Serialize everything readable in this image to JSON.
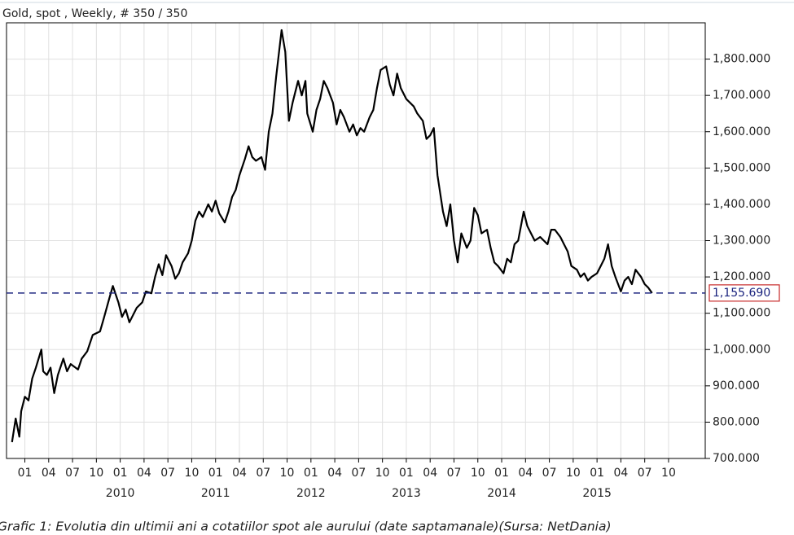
{
  "chart_data": {
    "type": "line",
    "title": "Gold, spot , Weekly, # 350 / 350",
    "caption": "Grafic 1: Evolutia din ultimii ani a cotatiilor spot ale aurului (date saptamanale)(Sursa: NetDania)",
    "color": "#000000",
    "x": [
      0,
      2,
      4,
      5,
      7,
      9,
      11,
      13,
      16,
      17,
      19,
      21,
      23,
      25,
      28,
      30,
      32,
      36,
      38,
      41,
      44,
      48,
      50,
      53,
      55,
      58,
      60,
      62,
      64,
      68,
      71,
      73,
      76,
      78,
      80,
      82,
      84,
      87,
      89,
      91,
      93,
      96,
      98,
      100,
      102,
      104,
      107,
      109,
      111,
      113,
      116,
      118,
      120,
      122,
      124,
      127,
      129,
      131,
      133,
      136,
      138,
      140,
      142,
      144,
      147,
      149,
      151,
      153,
      156,
      158,
      160,
      161,
      164,
      166,
      168,
      170,
      172,
      175,
      177,
      179,
      181,
      184,
      186,
      188,
      190,
      192,
      195,
      197,
      199,
      201,
      204,
      206,
      208,
      210,
      212,
      215,
      217,
      219,
      221,
      224,
      226,
      228,
      230,
      232,
      235,
      237,
      239,
      241,
      243,
      245,
      248,
      250,
      252,
      254,
      256,
      259,
      261,
      263,
      265,
      268,
      270,
      272,
      274,
      276,
      279,
      281,
      283,
      285,
      288,
      290,
      292,
      294,
      296,
      299,
      301,
      303,
      305,
      308,
      310,
      312,
      314,
      316,
      319,
      321,
      323,
      325,
      327,
      329,
      332,
      334,
      336,
      338,
      340,
      343,
      345,
      347,
      349
    ],
    "values": [
      745,
      810,
      760,
      830,
      870,
      860,
      920,
      950,
      1000,
      940,
      930,
      950,
      880,
      930,
      975,
      940,
      960,
      945,
      975,
      995,
      1040,
      1050,
      1085,
      1140,
      1175,
      1130,
      1090,
      1110,
      1075,
      1115,
      1130,
      1160,
      1155,
      1200,
      1235,
      1205,
      1260,
      1230,
      1195,
      1210,
      1240,
      1265,
      1300,
      1355,
      1380,
      1365,
      1400,
      1380,
      1410,
      1375,
      1350,
      1380,
      1420,
      1440,
      1480,
      1525,
      1560,
      1530,
      1520,
      1530,
      1495,
      1600,
      1650,
      1750,
      1880,
      1820,
      1630,
      1680,
      1740,
      1700,
      1740,
      1650,
      1600,
      1660,
      1690,
      1740,
      1720,
      1680,
      1620,
      1660,
      1640,
      1600,
      1620,
      1590,
      1610,
      1600,
      1640,
      1660,
      1720,
      1770,
      1780,
      1730,
      1700,
      1760,
      1720,
      1690,
      1680,
      1670,
      1650,
      1630,
      1580,
      1590,
      1610,
      1480,
      1380,
      1340,
      1400,
      1300,
      1240,
      1320,
      1280,
      1300,
      1390,
      1370,
      1320,
      1330,
      1280,
      1240,
      1230,
      1210,
      1250,
      1240,
      1290,
      1300,
      1380,
      1340,
      1320,
      1300,
      1310,
      1300,
      1290,
      1330,
      1330,
      1310,
      1290,
      1270,
      1230,
      1220,
      1200,
      1210,
      1190,
      1200,
      1210,
      1230,
      1250,
      1290,
      1230,
      1200,
      1160,
      1190,
      1200,
      1180,
      1220,
      1200,
      1180,
      1170,
      1155.69
    ],
    "last_value": {
      "value": 1155.69,
      "label": "1,155.690"
    },
    "xlim": [
      -3,
      378
    ],
    "xticks": [
      {
        "value": 7,
        "label": "01"
      },
      {
        "value": 20,
        "label": "04"
      },
      {
        "value": 33,
        "label": "07"
      },
      {
        "value": 46,
        "label": "10"
      },
      {
        "value": 59,
        "label": "01"
      },
      {
        "value": 72,
        "label": "04"
      },
      {
        "value": 85,
        "label": "07"
      },
      {
        "value": 98,
        "label": "10"
      },
      {
        "value": 111,
        "label": "01"
      },
      {
        "value": 124,
        "label": "04"
      },
      {
        "value": 137,
        "label": "07"
      },
      {
        "value": 150,
        "label": "10"
      },
      {
        "value": 163,
        "label": "01"
      },
      {
        "value": 176,
        "label": "04"
      },
      {
        "value": 189,
        "label": "07"
      },
      {
        "value": 202,
        "label": "10"
      },
      {
        "value": 215,
        "label": "01"
      },
      {
        "value": 228,
        "label": "04"
      },
      {
        "value": 241,
        "label": "07"
      },
      {
        "value": 254,
        "label": "10"
      },
      {
        "value": 267,
        "label": "01"
      },
      {
        "value": 280,
        "label": "04"
      },
      {
        "value": 293,
        "label": "07"
      },
      {
        "value": 306,
        "label": "10"
      },
      {
        "value": 319,
        "label": "01"
      },
      {
        "value": 332,
        "label": "04"
      },
      {
        "value": 345,
        "label": "07"
      },
      {
        "value": 358,
        "label": "10"
      }
    ],
    "year_labels": [
      {
        "value": 59,
        "label": "2010"
      },
      {
        "value": 111,
        "label": "2011"
      },
      {
        "value": 163,
        "label": "2012"
      },
      {
        "value": 215,
        "label": "2013"
      },
      {
        "value": 267,
        "label": "2014"
      },
      {
        "value": 319,
        "label": "2015"
      }
    ],
    "ylim": [
      700,
      1900
    ],
    "yticks": [
      {
        "value": 700,
        "label": "700.000"
      },
      {
        "value": 800,
        "label": "800.000"
      },
      {
        "value": 900,
        "label": "900.000"
      },
      {
        "value": 1000,
        "label": "1,000.000"
      },
      {
        "value": 1100,
        "label": "1,100.000"
      },
      {
        "value": 1200,
        "label": "1,200.000"
      },
      {
        "value": 1300,
        "label": "1,300.000"
      },
      {
        "value": 1400,
        "label": "1,400.000"
      },
      {
        "value": 1500,
        "label": "1,500.000"
      },
      {
        "value": 1600,
        "label": "1,600.000"
      },
      {
        "value": 1700,
        "label": "1,700.000"
      },
      {
        "value": 1800,
        "label": "1,800.000"
      }
    ],
    "grid": true
  }
}
